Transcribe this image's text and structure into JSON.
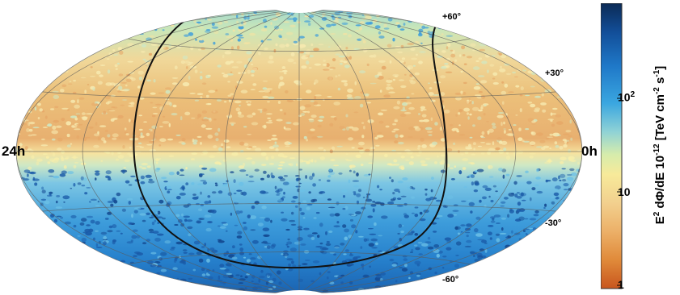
{
  "colors": {
    "scale": [
      "#c8561e",
      "#e08a3a",
      "#ecb068",
      "#f2d08e",
      "#f7ea9a",
      "#d6ecac",
      "#8fd2d6",
      "#3aa6e0",
      "#1f78c8",
      "#124e98",
      "#0b2a55"
    ]
  },
  "labels": {
    "ra_left": "24h",
    "ra_right": "0h",
    "dec_p60": "+60°",
    "dec_p30": "+30°",
    "dec_m30": "-30°",
    "dec_m60": "-60°"
  },
  "colorbar": {
    "title_a": "E",
    "title_a_sup": "2",
    "title_b": " dΦ/dE 10",
    "title_b_sup": "-12",
    "title_c": " [TeV cm",
    "title_c_sup": "-2",
    "title_d": " s",
    "title_d_sup": "-1",
    "title_e": "]",
    "tick_1": "1",
    "tick_10": "10",
    "tick_100_base": "10",
    "tick_100_sup": "2"
  }
}
